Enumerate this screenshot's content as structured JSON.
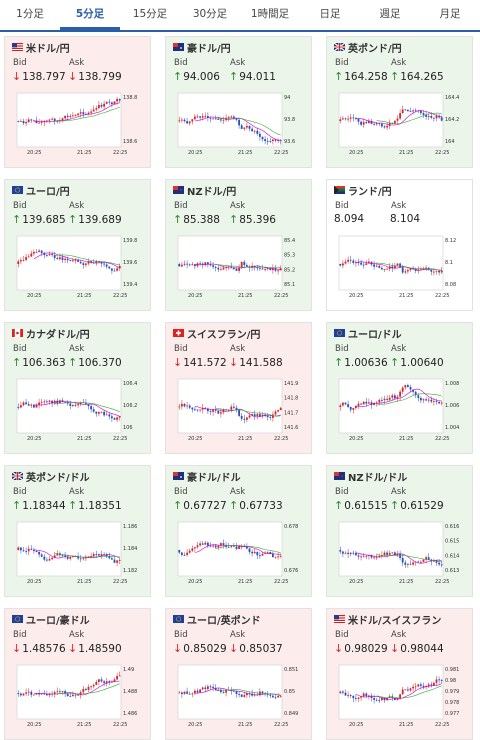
{
  "tabs": [
    "1分足",
    "5分足",
    "15分足",
    "30分足",
    "1時間足",
    "日足",
    "週足",
    "月足"
  ],
  "active_tab": 1,
  "labels": {
    "bid": "Bid",
    "ask": "Ask"
  },
  "colors": {
    "up": "#2b8a2b",
    "down": "#d8262b",
    "ma": "#d000d0",
    "accent": "#2a5fa8"
  },
  "cards": [
    {
      "pair": "米ドル/円",
      "flag": "us",
      "trend": "down",
      "bid": "138.797",
      "ask": "138.799",
      "yticks": [
        "138.8",
        "138.6"
      ],
      "xticks": [
        "20:25",
        "21:25",
        "22:25"
      ]
    },
    {
      "pair": "豪ドル/円",
      "flag": "au",
      "trend": "up",
      "bid": "94.006",
      "ask": "94.011",
      "yticks": [
        "94",
        "93.8",
        "93.6"
      ],
      "xticks": [
        "20:25",
        "21:25",
        "22:25"
      ]
    },
    {
      "pair": "英ポンド/円",
      "flag": "uk",
      "trend": "up",
      "bid": "164.258",
      "ask": "164.265",
      "yticks": [
        "164.4",
        "164.2",
        "164"
      ],
      "xticks": [
        "20:25",
        "21:25",
        "22:25"
      ]
    },
    {
      "pair": "ユーロ/円",
      "flag": "eu",
      "trend": "up",
      "bid": "139.685",
      "ask": "139.689",
      "yticks": [
        "139.8",
        "139.6",
        "139.4"
      ],
      "xticks": [
        "20:25",
        "21:25",
        "22:25"
      ]
    },
    {
      "pair": "NZドル/円",
      "flag": "nz",
      "trend": "up",
      "bid": "85.388",
      "ask": "85.396",
      "yticks": [
        "85.4",
        "85.3",
        "85.2",
        "85.1"
      ],
      "xticks": [
        "20:25",
        "21:25",
        "22:25"
      ]
    },
    {
      "pair": "ランド/円",
      "flag": "za",
      "trend": "neutral",
      "bid": "8.094",
      "ask": "8.104",
      "yticks": [
        "8.12",
        "8.1",
        "8.08"
      ],
      "xticks": [
        "20:25",
        "21:25",
        "22:25"
      ]
    },
    {
      "pair": "カナダドル/円",
      "flag": "ca",
      "trend": "up",
      "bid": "106.363",
      "ask": "106.370",
      "yticks": [
        "106.4",
        "106.2",
        "106"
      ],
      "xticks": [
        "20:25",
        "21:25",
        "22:25"
      ]
    },
    {
      "pair": "スイスフラン/円",
      "flag": "ch",
      "trend": "down",
      "bid": "141.572",
      "ask": "141.588",
      "yticks": [
        "141.9",
        "141.8",
        "141.7",
        "141.6"
      ],
      "xticks": [
        "20:25",
        "21:25",
        "22:25"
      ]
    },
    {
      "pair": "ユーロ/ドル",
      "flag": "eu",
      "trend": "up",
      "bid": "1.00636",
      "ask": "1.00640",
      "yticks": [
        "1.008",
        "1.006",
        "1.004"
      ],
      "xticks": [
        "20:25",
        "21:25",
        "22:25"
      ]
    },
    {
      "pair": "英ポンド/ドル",
      "flag": "uk",
      "trend": "up",
      "bid": "1.18344",
      "ask": "1.18351",
      "yticks": [
        "1.186",
        "1.184",
        "1.182"
      ],
      "xticks": [
        "20:25",
        "21:25",
        "22:25"
      ]
    },
    {
      "pair": "豪ドル/ドル",
      "flag": "au",
      "trend": "up",
      "bid": "0.67727",
      "ask": "0.67733",
      "yticks": [
        "0.678",
        "0.676"
      ],
      "xticks": [
        "20:25",
        "21:25",
        "22:25"
      ]
    },
    {
      "pair": "NZドル/ドル",
      "flag": "nz",
      "trend": "up",
      "bid": "0.61515",
      "ask": "0.61529",
      "yticks": [
        "0.616",
        "0.615",
        "0.614",
        "0.613"
      ],
      "xticks": [
        "20:25",
        "21:25",
        "22:25"
      ]
    },
    {
      "pair": "ユーロ/豪ドル",
      "flag": "eu",
      "trend": "down",
      "bid": "1.48576",
      "ask": "1.48590",
      "yticks": [
        "1.49",
        "1.488",
        "1.486"
      ],
      "xticks": [
        "20:25",
        "21:25",
        "22:25"
      ]
    },
    {
      "pair": "ユーロ/英ポンド",
      "flag": "eu",
      "trend": "down",
      "bid": "0.85029",
      "ask": "0.85037",
      "yticks": [
        "0.851",
        "0.85",
        "0.849"
      ],
      "xticks": [
        "20:25",
        "21:25",
        "22:25"
      ]
    },
    {
      "pair": "米ドル/スイスフラン",
      "flag": "us",
      "trend": "down",
      "bid": "0.98029",
      "ask": "0.98044",
      "yticks": [
        "0.981",
        "0.98",
        "0.979",
        "0.978",
        "0.977"
      ],
      "xticks": [
        "20:25",
        "21:25",
        "22:25"
      ]
    }
  ]
}
